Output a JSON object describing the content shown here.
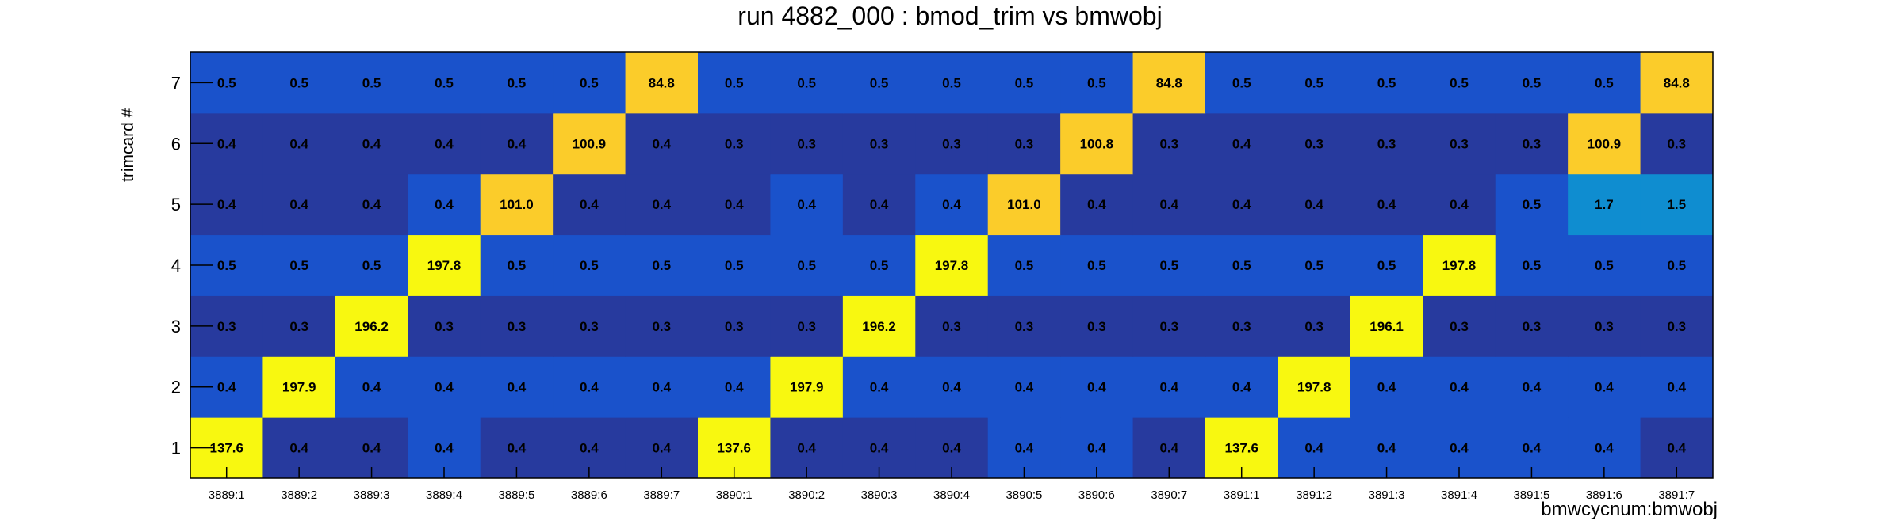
{
  "chart_data": {
    "type": "heatmap",
    "title": "run 4882_000 : bmod_trim vs bmwobj",
    "xlabel": "bmwcycnum:bmwobj",
    "ylabel": "trimcard #",
    "x_categories": [
      "3889:1",
      "3889:2",
      "3889:3",
      "3889:4",
      "3889:5",
      "3889:6",
      "3889:7",
      "3890:1",
      "3890:2",
      "3890:3",
      "3890:4",
      "3890:5",
      "3890:6",
      "3890:7",
      "3891:1",
      "3891:2",
      "3891:3",
      "3891:4",
      "3891:5",
      "3891:6",
      "3891:7"
    ],
    "y_categories": [
      "1",
      "2",
      "3",
      "4",
      "5",
      "6",
      "7"
    ],
    "values": [
      [
        "137.6",
        "0.4",
        "0.4",
        "0.4",
        "0.4",
        "0.4",
        "0.4",
        "137.6",
        "0.4",
        "0.4",
        "0.4",
        "0.4",
        "0.4",
        "0.4",
        "137.6",
        "0.4",
        "0.4",
        "0.4",
        "0.4",
        "0.4",
        "0.4"
      ],
      [
        "0.4",
        "197.9",
        "0.4",
        "0.4",
        "0.4",
        "0.4",
        "0.4",
        "0.4",
        "197.9",
        "0.4",
        "0.4",
        "0.4",
        "0.4",
        "0.4",
        "0.4",
        "197.8",
        "0.4",
        "0.4",
        "0.4",
        "0.4",
        "0.4"
      ],
      [
        "0.3",
        "0.3",
        "196.2",
        "0.3",
        "0.3",
        "0.3",
        "0.3",
        "0.3",
        "0.3",
        "196.2",
        "0.3",
        "0.3",
        "0.3",
        "0.3",
        "0.3",
        "0.3",
        "196.1",
        "0.3",
        "0.3",
        "0.3",
        "0.3"
      ],
      [
        "0.5",
        "0.5",
        "0.5",
        "197.8",
        "0.5",
        "0.5",
        "0.5",
        "0.5",
        "0.5",
        "0.5",
        "197.8",
        "0.5",
        "0.5",
        "0.5",
        "0.5",
        "0.5",
        "0.5",
        "197.8",
        "0.5",
        "0.5",
        "0.5"
      ],
      [
        "0.4",
        "0.4",
        "0.4",
        "0.4",
        "101.0",
        "0.4",
        "0.4",
        "0.4",
        "0.4",
        "0.4",
        "0.4",
        "101.0",
        "0.4",
        "0.4",
        "0.4",
        "0.4",
        "0.4",
        "0.4",
        "0.5",
        "1.7",
        "1.5"
      ],
      [
        "0.4",
        "0.4",
        "0.4",
        "0.4",
        "0.4",
        "100.9",
        "0.4",
        "0.3",
        "0.3",
        "0.3",
        "0.3",
        "0.3",
        "100.8",
        "0.3",
        "0.4",
        "0.3",
        "0.3",
        "0.3",
        "0.3",
        "100.9",
        "0.3"
      ],
      [
        "0.5",
        "0.5",
        "0.5",
        "0.5",
        "0.5",
        "0.5",
        "84.8",
        "0.5",
        "0.5",
        "0.5",
        "0.5",
        "0.5",
        "0.5",
        "84.8",
        "0.5",
        "0.5",
        "0.5",
        "0.5",
        "0.5",
        "0.5",
        "84.8"
      ]
    ],
    "colors": {
      "low_dark": "#273a9e",
      "low_mid": "#1a52cb",
      "cyan": "#0f8dd0",
      "orange": "#fbcc2a",
      "yellow": "#f8f810"
    }
  }
}
